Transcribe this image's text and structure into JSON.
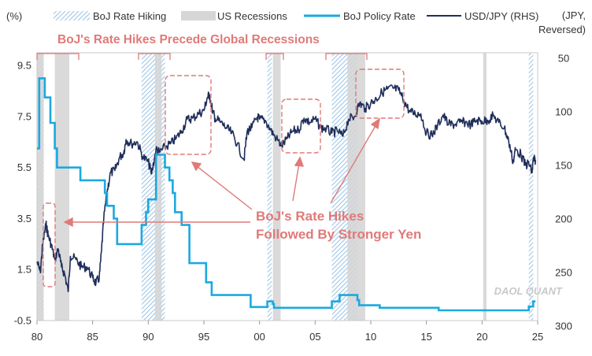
{
  "chart_data": {
    "type": "line",
    "title": "",
    "left_axis": {
      "unit_label": "(%)",
      "ylim": [
        -0.5,
        10.0
      ],
      "ticks": [
        -0.5,
        1.5,
        3.5,
        5.5,
        7.5,
        9.5
      ],
      "tick_labels": [
        "-0.5",
        "1.5",
        "3.5",
        "5.5",
        "7.5",
        "9.5"
      ]
    },
    "right_axis": {
      "unit_label_line1": "(JPY,",
      "unit_label_line2": "Reversed)",
      "reversed": true,
      "ylim": [
        45,
        295
      ],
      "ticks": [
        50,
        100,
        150,
        200,
        250,
        300
      ],
      "tick_labels": [
        "50",
        "100",
        "150",
        "200",
        "250",
        "300"
      ]
    },
    "x_axis": {
      "xlim": [
        1980.0,
        2025.0
      ],
      "ticks": [
        1980,
        1985,
        1990,
        1995,
        2000,
        2005,
        2010,
        2015,
        2020,
        2025
      ],
      "tick_labels": [
        "80",
        "85",
        "90",
        "95",
        "00",
        "05",
        "10",
        "15",
        "20",
        "25"
      ]
    },
    "legend": {
      "placement": "top",
      "items": [
        {
          "label": "BoJ Rate Hiking",
          "kind": "hatch"
        },
        {
          "label": "US Recessions",
          "kind": "gray"
        },
        {
          "label": "BoJ Policy Rate",
          "kind": "line",
          "color": "#1ba9e0"
        },
        {
          "label": "USD/JPY (RHS)",
          "kind": "line",
          "color": "#1f2e5a"
        }
      ]
    },
    "boj_hiking_periods": [
      [
        1980.0,
        1980.6
      ],
      [
        1989.4,
        1990.8
      ],
      [
        1990.9,
        1991.5
      ],
      [
        2000.7,
        2001.1
      ],
      [
        2006.5,
        2008.8
      ],
      [
        2024.2,
        2024.6
      ]
    ],
    "us_recessions": [
      [
        1980.0,
        1980.6
      ],
      [
        1981.6,
        1982.9
      ],
      [
        1990.6,
        1991.2
      ],
      [
        2001.2,
        2001.9
      ],
      [
        2007.9,
        2009.5
      ],
      [
        2020.1,
        2020.4
      ]
    ],
    "series": [
      {
        "name": "BoJ Policy Rate",
        "axis": "left",
        "color": "#1ba9e0",
        "step": true,
        "x": [
          1980.0,
          1980.2,
          1980.7,
          1981.2,
          1981.6,
          1981.8,
          1983.9,
          1986.1,
          1986.3,
          1986.9,
          1987.2,
          1989.4,
          1989.8,
          1990.0,
          1990.7,
          1991.5,
          1991.9,
          1992.2,
          1992.4,
          1993.0,
          1993.7,
          1995.2,
          1995.7,
          1999.2,
          2000.7,
          2001.2,
          2001.3,
          2006.5,
          2007.2,
          2008.8,
          2008.95,
          2010.8,
          2016.1,
          2024.2,
          2024.6,
          2024.8
        ],
        "y": [
          6.25,
          9.0,
          8.25,
          7.25,
          6.25,
          5.5,
          5.0,
          4.5,
          4.0,
          3.5,
          2.5,
          3.25,
          3.75,
          4.25,
          6.0,
          5.5,
          5.0,
          4.5,
          3.75,
          3.25,
          1.75,
          1.0,
          0.5,
          0.03,
          0.25,
          0.15,
          0.0,
          0.25,
          0.5,
          0.3,
          0.1,
          0.0,
          -0.1,
          0.05,
          0.25,
          0.25
        ]
      },
      {
        "name": "USD/JPY (RHS)",
        "axis": "right",
        "color": "#1f2e5a",
        "x": [
          1980.0,
          1980.3,
          1980.5,
          1980.8,
          1981.0,
          1981.3,
          1981.6,
          1981.9,
          1982.2,
          1982.5,
          1982.8,
          1983.0,
          1983.5,
          1984.0,
          1984.5,
          1985.0,
          1985.3,
          1985.6,
          1985.8,
          1986.0,
          1986.3,
          1986.6,
          1987.0,
          1987.4,
          1987.8,
          1988.0,
          1988.5,
          1989.0,
          1989.5,
          1990.0,
          1990.3,
          1990.7,
          1991.0,
          1991.5,
          1992.0,
          1992.5,
          1993.0,
          1993.5,
          1994.0,
          1994.5,
          1995.0,
          1995.3,
          1995.5,
          1995.8,
          1996.0,
          1996.5,
          1997.0,
          1997.5,
          1998.0,
          1998.6,
          1998.9,
          1999.3,
          1999.8,
          2000.0,
          2000.5,
          2001.0,
          2001.5,
          2002.0,
          2002.5,
          2003.0,
          2003.5,
          2004.0,
          2004.5,
          2005.0,
          2005.5,
          2006.0,
          2006.5,
          2007.0,
          2007.5,
          2008.0,
          2008.5,
          2009.0,
          2009.5,
          2010.0,
          2010.5,
          2011.0,
          2011.5,
          2012.0,
          2012.5,
          2013.0,
          2013.5,
          2014.0,
          2014.5,
          2015.0,
          2015.5,
          2016.0,
          2016.5,
          2017.0,
          2017.5,
          2018.0,
          2018.5,
          2019.0,
          2019.5,
          2020.0,
          2020.5,
          2021.0,
          2021.5,
          2022.0,
          2022.4,
          2022.8,
          2023.0,
          2023.5,
          2023.9,
          2024.2,
          2024.5,
          2024.6,
          2024.8
        ],
        "y": [
          240,
          250,
          225,
          205,
          215,
          225,
          238,
          228,
          245,
          252,
          268,
          235,
          238,
          245,
          245,
          255,
          260,
          255,
          230,
          200,
          175,
          157,
          155,
          143,
          138,
          126,
          130,
          128,
          142,
          147,
          158,
          135,
          138,
          133,
          130,
          125,
          118,
          107,
          106,
          102,
          99,
          87,
          84,
          100,
          106,
          110,
          115,
          120,
          130,
          145,
          118,
          115,
          105,
          107,
          108,
          117,
          125,
          132,
          125,
          118,
          117,
          106,
          110,
          107,
          115,
          116,
          120,
          118,
          123,
          107,
          105,
          92,
          97,
          92,
          88,
          82,
          79,
          78,
          80,
          90,
          100,
          102,
          102,
          120,
          122,
          113,
          103,
          112,
          112,
          110,
          110,
          112,
          108,
          109,
          108,
          104,
          110,
          115,
          128,
          147,
          135,
          140,
          150,
          148,
          157,
          145,
          145
        ]
      }
    ],
    "annotations": {
      "title_red": "BoJ's Rate Hikes Precede Global Recessions",
      "center_line1": "BoJ's Rate Hikes",
      "center_line2": "Followed By Stronger Yen",
      "watermark": "DAOL QUANT"
    }
  }
}
